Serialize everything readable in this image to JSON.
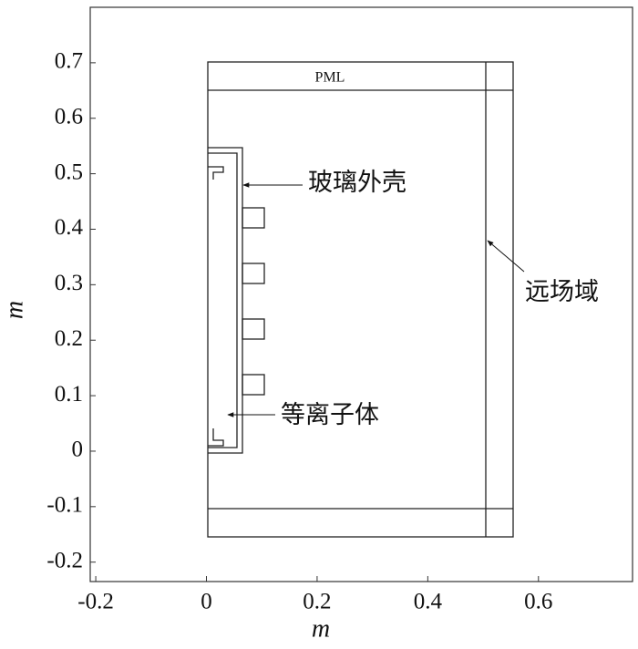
{
  "axes": {
    "xlabel": "m",
    "ylabel": "m",
    "xlim": [
      -0.21,
      0.77
    ],
    "ylim": [
      -0.235,
      0.8
    ],
    "xticks": [
      -0.2,
      0,
      0.2,
      0.4,
      0.6
    ],
    "yticks": [
      -0.2,
      -0.1,
      0,
      0.1,
      0.2,
      0.3,
      0.4,
      0.5,
      0.6,
      0.7
    ]
  },
  "annotations": {
    "pml": "PML",
    "glass_shell": "玻璃外壳",
    "far_field": "远场域",
    "plasma": "等离子体"
  }
}
